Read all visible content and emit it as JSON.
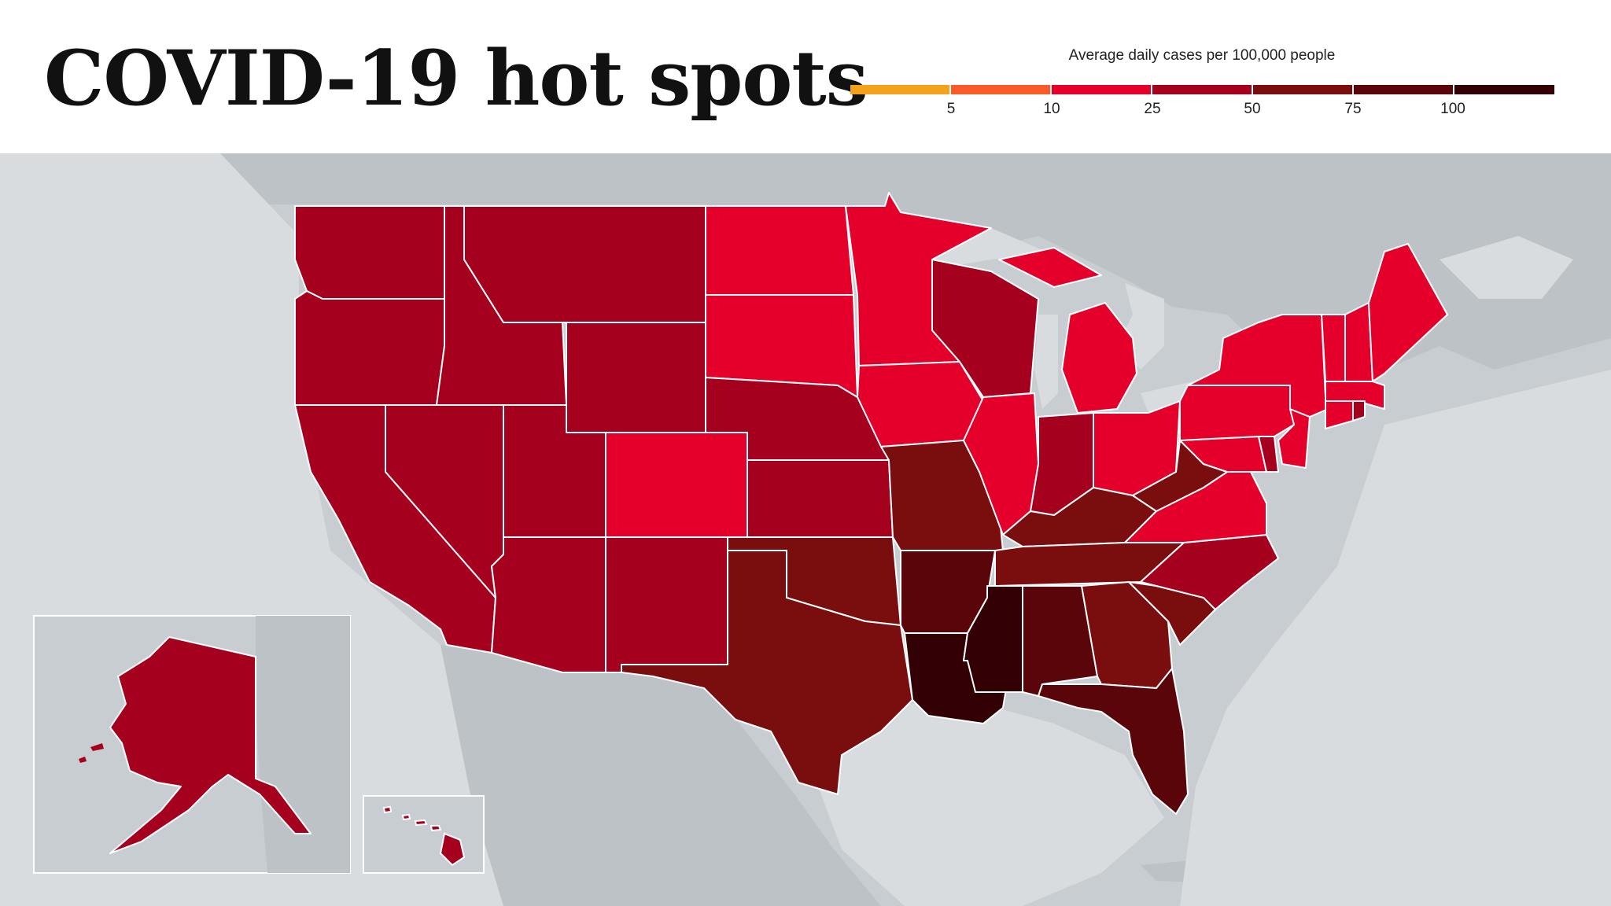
{
  "header": {
    "title": "COVID-19 hot spots"
  },
  "legend": {
    "title": "Average daily cases per 100,000 people",
    "ticks": [
      "5",
      "10",
      "25",
      "50",
      "75",
      "100"
    ],
    "colors": [
      "#f4a21c",
      "#fa5a2a",
      "#e4002b",
      "#a6001f",
      "#7a0d0e",
      "#5a050a",
      "#320004"
    ]
  },
  "colors": {
    "background_land": "#c8cdd1",
    "foreign_land": "#bcc2c6",
    "water": "#d8dcdf",
    "state_border": "#ffffff"
  },
  "states": [
    {
      "id": "WA",
      "bucket": 3
    },
    {
      "id": "OR",
      "bucket": 3
    },
    {
      "id": "CA",
      "bucket": 3
    },
    {
      "id": "NV",
      "bucket": 3
    },
    {
      "id": "ID",
      "bucket": 3
    },
    {
      "id": "MT",
      "bucket": 3
    },
    {
      "id": "WY",
      "bucket": 3
    },
    {
      "id": "UT",
      "bucket": 3
    },
    {
      "id": "AZ",
      "bucket": 3
    },
    {
      "id": "CO",
      "bucket": 2
    },
    {
      "id": "NM",
      "bucket": 3
    },
    {
      "id": "ND",
      "bucket": 2
    },
    {
      "id": "SD",
      "bucket": 2
    },
    {
      "id": "NE",
      "bucket": 3
    },
    {
      "id": "KS",
      "bucket": 3
    },
    {
      "id": "OK",
      "bucket": 4
    },
    {
      "id": "TX",
      "bucket": 4
    },
    {
      "id": "MN",
      "bucket": 2
    },
    {
      "id": "IA",
      "bucket": 2
    },
    {
      "id": "MO",
      "bucket": 4
    },
    {
      "id": "AR",
      "bucket": 5
    },
    {
      "id": "LA",
      "bucket": 6
    },
    {
      "id": "WI",
      "bucket": 3
    },
    {
      "id": "IL",
      "bucket": 2
    },
    {
      "id": "MI",
      "bucket": 2
    },
    {
      "id": "IN",
      "bucket": 3
    },
    {
      "id": "OH",
      "bucket": 2
    },
    {
      "id": "KY",
      "bucket": 4
    },
    {
      "id": "TN",
      "bucket": 4
    },
    {
      "id": "MS",
      "bucket": 6
    },
    {
      "id": "AL",
      "bucket": 5
    },
    {
      "id": "GA",
      "bucket": 4
    },
    {
      "id": "FL",
      "bucket": 5
    },
    {
      "id": "SC",
      "bucket": 4
    },
    {
      "id": "NC",
      "bucket": 3
    },
    {
      "id": "VA",
      "bucket": 2
    },
    {
      "id": "WV",
      "bucket": 4
    },
    {
      "id": "PA",
      "bucket": 2
    },
    {
      "id": "NY",
      "bucket": 2
    },
    {
      "id": "VT",
      "bucket": 2
    },
    {
      "id": "NH",
      "bucket": 2
    },
    {
      "id": "ME",
      "bucket": 2
    },
    {
      "id": "MA",
      "bucket": 2
    },
    {
      "id": "CT",
      "bucket": 2
    },
    {
      "id": "RI",
      "bucket": 3
    },
    {
      "id": "NJ",
      "bucket": 2
    },
    {
      "id": "DE",
      "bucket": 3
    },
    {
      "id": "MD",
      "bucket": 2
    },
    {
      "id": "AK",
      "bucket": 3
    },
    {
      "id": "HI",
      "bucket": 3
    }
  ]
}
